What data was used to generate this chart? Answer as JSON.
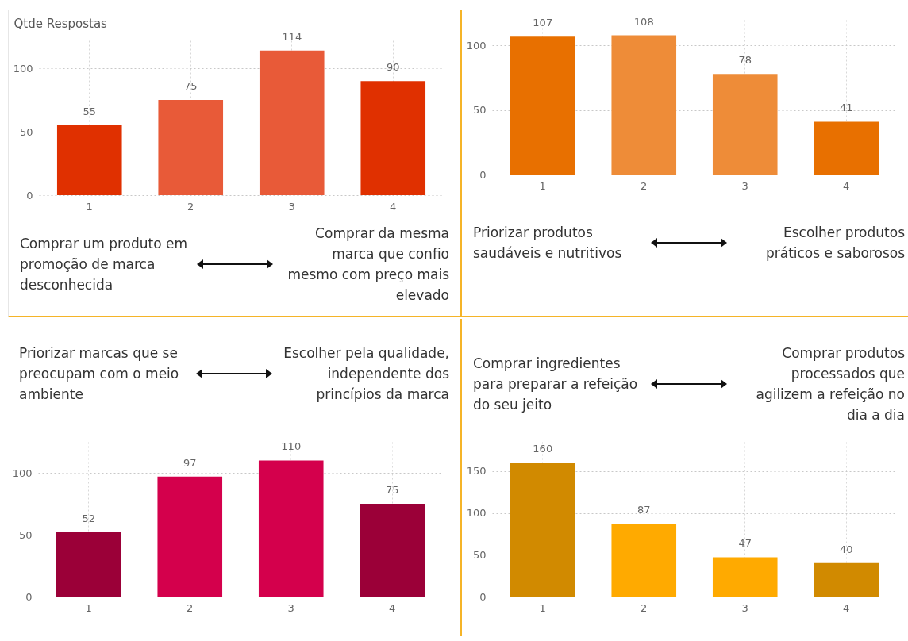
{
  "chart_data": [
    {
      "type": "bar",
      "ylabel": "Qtde Respostas",
      "categories": [
        "1",
        "2",
        "3",
        "4"
      ],
      "values": [
        55,
        75,
        114,
        90
      ],
      "colors": [
        "#e03000",
        "#e85a38",
        "#e85a38",
        "#e03000"
      ],
      "ylim": [
        0,
        122
      ],
      "yticks": [
        0,
        50,
        100
      ],
      "grid": true,
      "data_labels": true,
      "annotations": [
        "Comprar um produto em promoção de marca desconhecida",
        "Comprar da mesma marca que confio mesmo com preço mais elevado"
      ]
    },
    {
      "type": "bar",
      "categories": [
        "1",
        "2",
        "3",
        "4"
      ],
      "values": [
        107,
        108,
        78,
        41
      ],
      "colors": [
        "#e87000",
        "#ee8c38",
        "#ee8c38",
        "#e87000"
      ],
      "ylim": [
        0,
        120
      ],
      "yticks": [
        0,
        50,
        100
      ],
      "grid": true,
      "data_labels": true,
      "annotations": [
        "Priorizar produtos saudáveis e nutritivos",
        "Escolher produtos práticos e saborosos"
      ]
    },
    {
      "type": "bar",
      "categories": [
        "1",
        "2",
        "3",
        "4"
      ],
      "values": [
        52,
        97,
        110,
        75
      ],
      "colors": [
        "#9b0038",
        "#d4004c",
        "#d4004c",
        "#9b0038"
      ],
      "ylim": [
        0,
        125
      ],
      "yticks": [
        0,
        50,
        100
      ],
      "grid": true,
      "data_labels": true,
      "annotations": [
        "Priorizar marcas que se preocupam com o meio ambiente",
        "Escolher pela qualidade, independente dos princípios da marca"
      ]
    },
    {
      "type": "bar",
      "categories": [
        "1",
        "2",
        "3",
        "4"
      ],
      "values": [
        160,
        87,
        47,
        40
      ],
      "colors": [
        "#d18a00",
        "#ffaa00",
        "#ffaa00",
        "#d18a00"
      ],
      "ylim": [
        0,
        185
      ],
      "yticks": [
        0,
        50,
        100,
        150
      ],
      "grid": true,
      "data_labels": true,
      "annotations": [
        "Comprar ingredientes para preparar a refeição do seu jeito",
        "Comprar produtos processados que agilizem a refeição no dia a dia"
      ]
    }
  ]
}
